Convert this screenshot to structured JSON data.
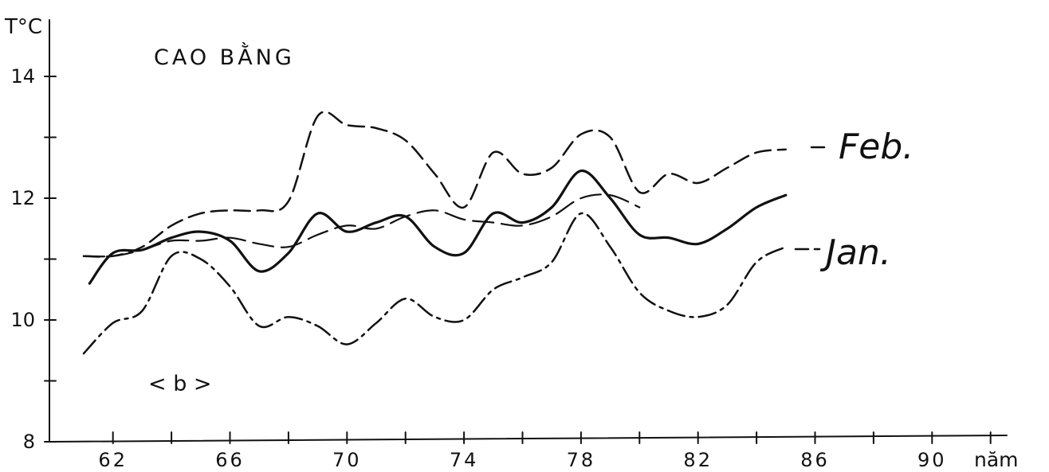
{
  "chart_data": {
    "type": "line",
    "title": "CAO BẰNG",
    "panel_label": "< b >",
    "ylabel": "T°C",
    "xlabel": "năm",
    "xlim": [
      60.5,
      93.5
    ],
    "ylim": [
      8,
      14.8
    ],
    "x_ticks": [
      62,
      66,
      70,
      74,
      78,
      82,
      86,
      90
    ],
    "x_minor_ticks": [
      64,
      68,
      72,
      76,
      80,
      84,
      88,
      92
    ],
    "y_ticks": [
      8,
      10,
      12,
      14
    ],
    "y_minor_ticks": [
      9,
      11,
      13
    ],
    "line_labels": [
      "Feb.",
      "Jan."
    ],
    "series": [
      {
        "name": "Feb.",
        "style": "dash",
        "x": [
          61,
          62,
          63,
          64,
          65,
          66,
          67,
          68,
          69,
          70,
          71,
          72,
          73,
          74,
          75,
          76,
          77,
          78,
          79,
          80,
          81,
          82,
          83,
          84,
          85
        ],
        "y": [
          11.05,
          11.05,
          11.2,
          11.55,
          11.75,
          11.8,
          11.8,
          11.95,
          13.35,
          13.2,
          13.15,
          12.95,
          12.4,
          11.85,
          12.75,
          12.4,
          12.5,
          13.05,
          13.0,
          12.1,
          12.4,
          12.25,
          12.5,
          12.75,
          12.8
        ]
      },
      {
        "name": "Jan.",
        "style": "dashdot",
        "x": [
          61,
          62,
          63,
          64,
          65,
          66,
          67,
          68,
          69,
          70,
          71,
          72,
          73,
          74,
          75,
          76,
          77,
          78,
          79,
          80,
          81,
          82,
          83,
          84,
          85
        ],
        "y": [
          9.45,
          9.95,
          10.15,
          11.05,
          11.0,
          10.55,
          9.9,
          10.05,
          9.9,
          9.6,
          9.95,
          10.35,
          10.05,
          10.0,
          10.5,
          10.7,
          10.95,
          11.75,
          11.2,
          10.45,
          10.15,
          10.05,
          10.25,
          10.95,
          11.2
        ]
      },
      {
        "name": "",
        "style": "solid",
        "x": [
          61.2,
          62,
          63,
          64,
          65,
          66,
          67,
          68,
          69,
          70,
          71,
          72,
          73,
          74,
          75,
          76,
          77,
          78,
          79,
          80,
          81,
          82,
          83,
          84,
          85
        ],
        "y": [
          10.6,
          11.1,
          11.15,
          11.35,
          11.45,
          11.3,
          10.8,
          11.1,
          11.75,
          11.45,
          11.6,
          11.7,
          11.2,
          11.1,
          11.75,
          11.6,
          11.85,
          12.45,
          12.0,
          11.4,
          11.35,
          11.25,
          11.5,
          11.85,
          12.05
        ]
      },
      {
        "name": "",
        "style": "longdash",
        "x": [
          61,
          62,
          63,
          64,
          65,
          66,
          67,
          68,
          69,
          70,
          71,
          72,
          73,
          74,
          75,
          76,
          77,
          78,
          79,
          80
        ],
        "y": [
          11.05,
          11.05,
          11.15,
          11.3,
          11.3,
          11.35,
          11.25,
          11.2,
          11.4,
          11.55,
          11.5,
          11.7,
          11.8,
          11.65,
          11.6,
          11.55,
          11.7,
          12.0,
          12.05,
          11.85
        ]
      }
    ]
  }
}
